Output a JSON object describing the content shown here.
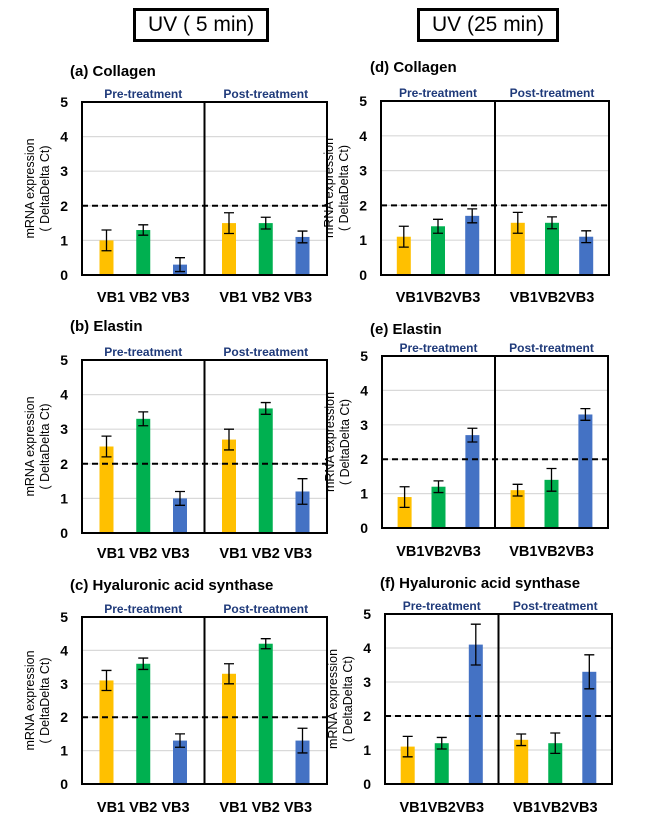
{
  "headers": [
    "UV ( 5 min)",
    "UV (25 min)"
  ],
  "colors": {
    "VB1": "#FFC000",
    "VB2": "#00B050",
    "VB3": "#4472C4",
    "group_label": "#1F3A7A"
  },
  "chart_data": [
    {
      "type": "bar",
      "title": "(a) Collagen",
      "ylabel": [
        "mRNA expression",
        "( DeltaDelta Ct)"
      ],
      "ylim": [
        0,
        5
      ],
      "yticks": [
        0,
        1,
        2,
        3,
        4,
        5
      ],
      "reference_line": 2,
      "grid": true,
      "groups": [
        "Pre-treatment",
        "Post-treatment"
      ],
      "categories": [
        "VB1",
        "VB2",
        "VB3"
      ],
      "series": [
        {
          "group": "Pre-treatment",
          "values": [
            1.0,
            1.3,
            0.3
          ],
          "errors": [
            0.3,
            0.15,
            0.2
          ]
        },
        {
          "group": "Post-treatment",
          "values": [
            1.5,
            1.5,
            1.1
          ],
          "errors": [
            0.3,
            0.17,
            0.17
          ]
        }
      ]
    },
    {
      "type": "bar",
      "title": "(b) Elastin",
      "ylabel": [
        "mRNA expression",
        "( DeltaDelta Ct)"
      ],
      "ylim": [
        0,
        5
      ],
      "yticks": [
        0,
        1,
        2,
        3,
        4,
        5
      ],
      "reference_line": 2,
      "grid": true,
      "groups": [
        "Pre-treatment",
        "Post-treatment"
      ],
      "categories": [
        "VB1",
        "VB2",
        "VB3"
      ],
      "series": [
        {
          "group": "Pre-treatment",
          "values": [
            2.5,
            3.3,
            1.0
          ],
          "errors": [
            0.3,
            0.2,
            0.2
          ]
        },
        {
          "group": "Post-treatment",
          "values": [
            2.7,
            3.6,
            1.2
          ],
          "errors": [
            0.3,
            0.17,
            0.37
          ]
        }
      ]
    },
    {
      "type": "bar",
      "title": "(c) Hyaluronic acid synthase",
      "ylabel": [
        "mRNA expression",
        "( DeltaDelta Ct)"
      ],
      "ylim": [
        0,
        5
      ],
      "yticks": [
        0,
        1,
        2,
        3,
        4,
        5
      ],
      "reference_line": 2,
      "grid": true,
      "groups": [
        "Pre-treatment",
        "Post-treatment"
      ],
      "categories": [
        "VB1",
        "VB2",
        "VB3"
      ],
      "series": [
        {
          "group": "Pre-treatment",
          "values": [
            3.1,
            3.6,
            1.3
          ],
          "errors": [
            0.3,
            0.17,
            0.2
          ]
        },
        {
          "group": "Post-treatment",
          "values": [
            3.3,
            4.2,
            1.3
          ],
          "errors": [
            0.3,
            0.15,
            0.37
          ]
        }
      ]
    },
    {
      "type": "bar",
      "title": "(d) Collagen",
      "ylabel": [
        "mRNA expression",
        "( DeltaDelta Ct)"
      ],
      "ylim": [
        0,
        5
      ],
      "yticks": [
        0,
        1,
        2,
        3,
        4,
        5
      ],
      "reference_line": 2,
      "grid": true,
      "groups": [
        "Pre-treatment",
        "Post-treatment"
      ],
      "categories": [
        "VB1",
        "VB2",
        "VB3"
      ],
      "series": [
        {
          "group": "Pre-treatment",
          "values": [
            1.1,
            1.4,
            1.7
          ],
          "errors": [
            0.3,
            0.2,
            0.2
          ]
        },
        {
          "group": "Post-treatment",
          "values": [
            1.5,
            1.5,
            1.1
          ],
          "errors": [
            0.3,
            0.17,
            0.17
          ]
        }
      ]
    },
    {
      "type": "bar",
      "title": "(e) Elastin",
      "ylabel": [
        "mRNA expression",
        "( DeltaDelta Ct)"
      ],
      "ylim": [
        0,
        5
      ],
      "yticks": [
        0,
        1,
        2,
        3,
        4,
        5
      ],
      "reference_line": 2,
      "grid": true,
      "groups": [
        "Pre-treatment",
        "Post-treatment"
      ],
      "categories": [
        "VB1",
        "VB2",
        "VB3"
      ],
      "series": [
        {
          "group": "Pre-treatment",
          "values": [
            0.9,
            1.2,
            2.7
          ],
          "errors": [
            0.3,
            0.17,
            0.2
          ]
        },
        {
          "group": "Post-treatment",
          "values": [
            1.1,
            1.4,
            3.3
          ],
          "errors": [
            0.17,
            0.33,
            0.17
          ]
        }
      ]
    },
    {
      "type": "bar",
      "title": "(f) Hyaluronic acid synthase",
      "ylabel": [
        "mRNA expression",
        "( DeltaDelta Ct)"
      ],
      "ylim": [
        0,
        5
      ],
      "yticks": [
        0,
        1,
        2,
        3,
        4,
        5
      ],
      "reference_line": 2,
      "grid": true,
      "groups": [
        "Pre-treatment",
        "Post-treatment"
      ],
      "categories": [
        "VB1",
        "VB2",
        "VB3"
      ],
      "series": [
        {
          "group": "Pre-treatment",
          "values": [
            1.1,
            1.2,
            4.1
          ],
          "errors": [
            0.3,
            0.17,
            0.6
          ]
        },
        {
          "group": "Post-treatment",
          "values": [
            1.3,
            1.2,
            3.3
          ],
          "errors": [
            0.17,
            0.3,
            0.5
          ]
        }
      ]
    }
  ]
}
